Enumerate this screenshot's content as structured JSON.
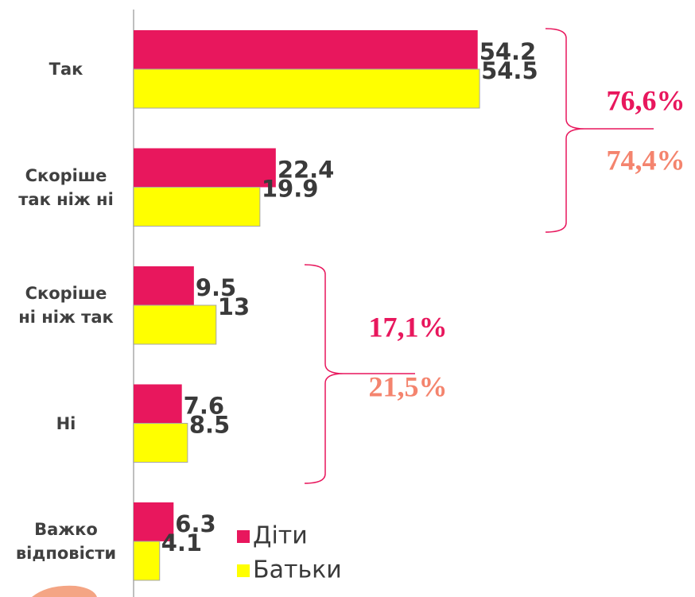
{
  "chart_data": {
    "type": "bar",
    "orientation": "horizontal",
    "categories": [
      "Так",
      "Скоріше так ніж ні",
      "Скоріше ні ніж так",
      "Ні",
      "Важко відповісти"
    ],
    "series": [
      {
        "name": "Діти",
        "color": "#e8175d",
        "values": [
          54.2,
          22.4,
          9.5,
          7.6,
          6.3
        ]
      },
      {
        "name": "Батьки",
        "color": "#ffff00",
        "values": [
          54.5,
          19.9,
          13,
          8.5,
          4.1
        ]
      }
    ],
    "xlim": [
      0,
      60
    ],
    "annotations": [
      {
        "text": "76,6%",
        "color": "#e8175d"
      },
      {
        "text": "74,4%",
        "color": "#f4846e"
      },
      {
        "text": "17,1%",
        "color": "#e8175d"
      },
      {
        "text": "21,5%",
        "color": "#f4846e"
      }
    ]
  }
}
